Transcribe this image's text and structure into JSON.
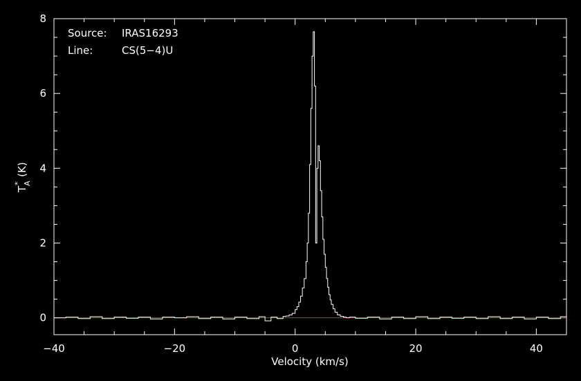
{
  "chart_data": {
    "type": "line",
    "title": "",
    "annotations": [
      {
        "key": "Source:",
        "value": "IRAS16293"
      },
      {
        "key": "Line:",
        "value": "CS(5−4)U"
      }
    ],
    "xlabel": "Velocity (km/s)",
    "ylabel": "T",
    "ylabel_superscript": "*",
    "ylabel_subscript": "A",
    "ylabel_unit": "(K)",
    "xlim": [
      -40,
      45
    ],
    "ylim": [
      -0.45,
      8
    ],
    "x_ticks": [
      -40,
      -20,
      0,
      20,
      40
    ],
    "y_ticks": [
      0,
      2,
      4,
      6,
      8
    ],
    "x_tick_labels": [
      "−40",
      "−20",
      "0",
      "20",
      "40"
    ],
    "y_tick_labels": [
      "0",
      "2",
      "4",
      "6",
      "8"
    ],
    "grid": false,
    "baseline": 0,
    "colors": {
      "background": "#000000",
      "spectrum": "#ffffff",
      "baseline": "#c0392b",
      "axes": "#ffffff"
    },
    "series": [
      {
        "x": [
          -40,
          -38,
          -36,
          -34,
          -32,
          -30,
          -28,
          -26,
          -24,
          -22,
          -20,
          -18,
          -16,
          -14,
          -12,
          -10,
          -8,
          -6,
          -5,
          -4,
          -3,
          -2,
          -1.5,
          -1,
          -0.5,
          0,
          0.3,
          0.6,
          0.9,
          1.2,
          1.5,
          1.8,
          2.0,
          2.2,
          2.4,
          2.6,
          2.8,
          3.0,
          3.2,
          3.4,
          3.6,
          3.8,
          4.0,
          4.2,
          4.4,
          4.6,
          4.8,
          5.0,
          5.2,
          5.4,
          5.6,
          5.8,
          6.0,
          6.3,
          6.6,
          7.0,
          7.5,
          8,
          8.5,
          9,
          10,
          12,
          14,
          16,
          18,
          20,
          22,
          24,
          26,
          28,
          30,
          32,
          34,
          36,
          38,
          40,
          42,
          44,
          45
        ],
        "y": [
          0.0,
          0.02,
          -0.02,
          0.03,
          -0.02,
          0.02,
          -0.01,
          0.02,
          -0.03,
          0.02,
          0.0,
          0.03,
          -0.02,
          0.02,
          -0.03,
          0.02,
          -0.02,
          0.03,
          -0.08,
          0.02,
          -0.02,
          0.04,
          0.05,
          0.08,
          0.12,
          0.22,
          0.3,
          0.42,
          0.58,
          0.8,
          1.05,
          1.5,
          2.0,
          2.8,
          4.1,
          5.6,
          7.0,
          7.65,
          6.2,
          2.0,
          4.0,
          4.6,
          4.2,
          3.4,
          2.7,
          2.1,
          1.7,
          1.35,
          1.05,
          0.82,
          0.62,
          0.48,
          0.36,
          0.24,
          0.15,
          0.08,
          0.04,
          0.02,
          0.0,
          0.02,
          -0.01,
          0.02,
          -0.03,
          0.02,
          -0.02,
          0.03,
          -0.02,
          0.02,
          -0.01,
          0.02,
          -0.02,
          0.03,
          -0.02,
          0.02,
          -0.03,
          0.02,
          -0.02,
          0.03,
          0.0
        ]
      }
    ]
  }
}
